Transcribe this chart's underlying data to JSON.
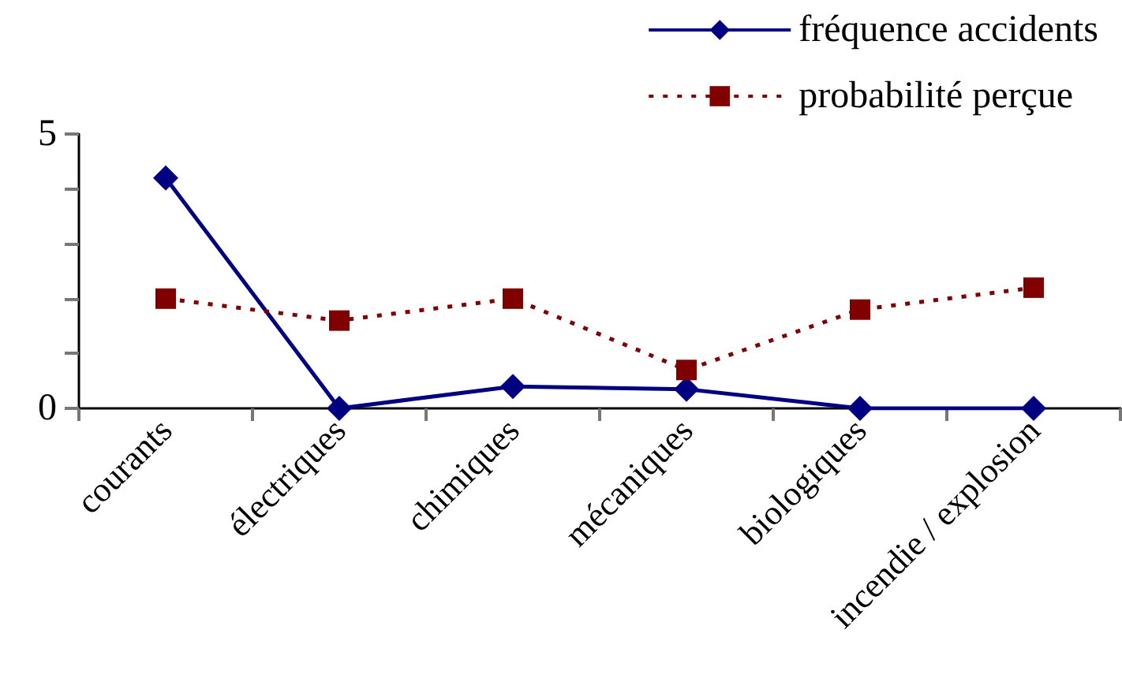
{
  "chart_data": {
    "type": "line",
    "categories": [
      "courants",
      "électriques",
      "chimiques",
      "mécaniques",
      "biologiques",
      "incendie / explosion"
    ],
    "series": [
      {
        "name": "fréquence accidents",
        "color": "#000080",
        "values": [
          4.2,
          0,
          0.4,
          0.35,
          0,
          0
        ],
        "marker": "diamond",
        "line_style": "solid"
      },
      {
        "name": "probabilité perçue",
        "color": "#800000",
        "values": [
          2.0,
          1.6,
          2.0,
          0.7,
          1.8,
          2.2
        ],
        "marker": "square",
        "line_style": "dotted"
      }
    ],
    "ylim": [
      0,
      5
    ],
    "yticks": [
      0,
      {
        "value": 1,
        "label": null
      },
      {
        "value": 2,
        "label": null
      },
      {
        "value": 3,
        "label": null
      },
      {
        "value": 4,
        "label": null
      },
      5
    ],
    "grid": false,
    "legend": "top right"
  }
}
